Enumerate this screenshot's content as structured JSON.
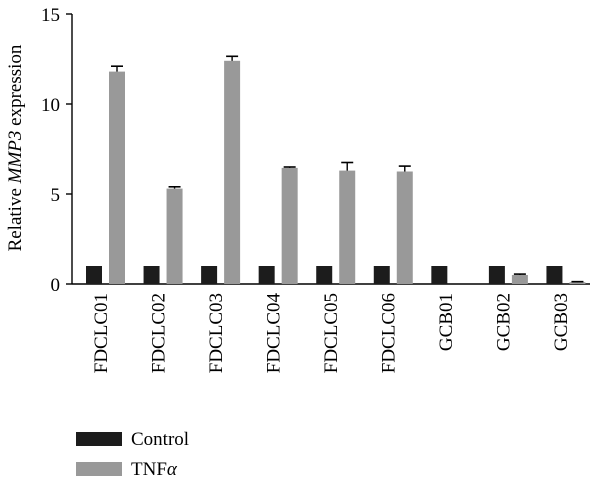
{
  "chart_data": {
    "type": "bar",
    "ylabel_prefix": "Relative ",
    "ylabel_gene": "MMP3",
    "ylabel_suffix": " expression",
    "xlabel": "",
    "ylim": [
      0,
      15
    ],
    "yticks": [
      0,
      5,
      10,
      15
    ],
    "categories": [
      "FDCLC01",
      "FDCLC02",
      "FDCLC03",
      "FDCLC04",
      "FDCLC05",
      "FDCLC06",
      "GCB01",
      "GCB02",
      "GCB03"
    ],
    "series": [
      {
        "name": "Control",
        "color": "#1c1c1c",
        "values": [
          1,
          1,
          1,
          1,
          1,
          1,
          1,
          1,
          1
        ],
        "errors": [
          0,
          0,
          0,
          0,
          0,
          0,
          0,
          0,
          0
        ]
      },
      {
        "name": "TNF",
        "name_symbol": "α",
        "color": "#999999",
        "values": [
          11.8,
          5.3,
          12.4,
          6.45,
          6.3,
          6.25,
          0,
          0.5,
          0.1
        ],
        "errors": [
          0.3,
          0.1,
          0.25,
          0.05,
          0.45,
          0.3,
          0,
          0.05,
          0.03
        ]
      }
    ],
    "legend_position": "bottom-left",
    "grid": false
  }
}
